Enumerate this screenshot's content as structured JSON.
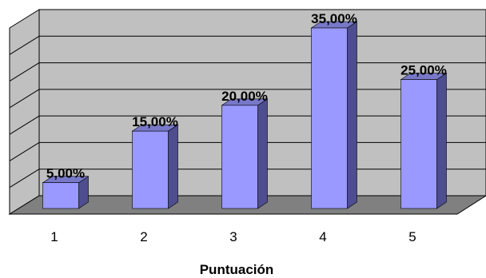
{
  "chart_data": {
    "type": "bar",
    "categories": [
      "1",
      "2",
      "3",
      "4",
      "5"
    ],
    "values": [
      5,
      15,
      20,
      35,
      25
    ],
    "data_labels": [
      "5,00%",
      "15,00%",
      "20,00%",
      "35,00%",
      "25,00%"
    ],
    "title": "",
    "xlabel": "Puntuación",
    "ylabel": "",
    "ylim": [
      0,
      35
    ],
    "grid": true,
    "legend": "none",
    "style": "3d-column",
    "colors": {
      "bar_front": "#9999ff",
      "bar_side": "#4d4d8f",
      "bar_top": "#7878c8",
      "back_wall": "#c0c0c0",
      "side_wall": "#c0c0c0",
      "floor": "#808080",
      "grid": "#000000"
    }
  }
}
